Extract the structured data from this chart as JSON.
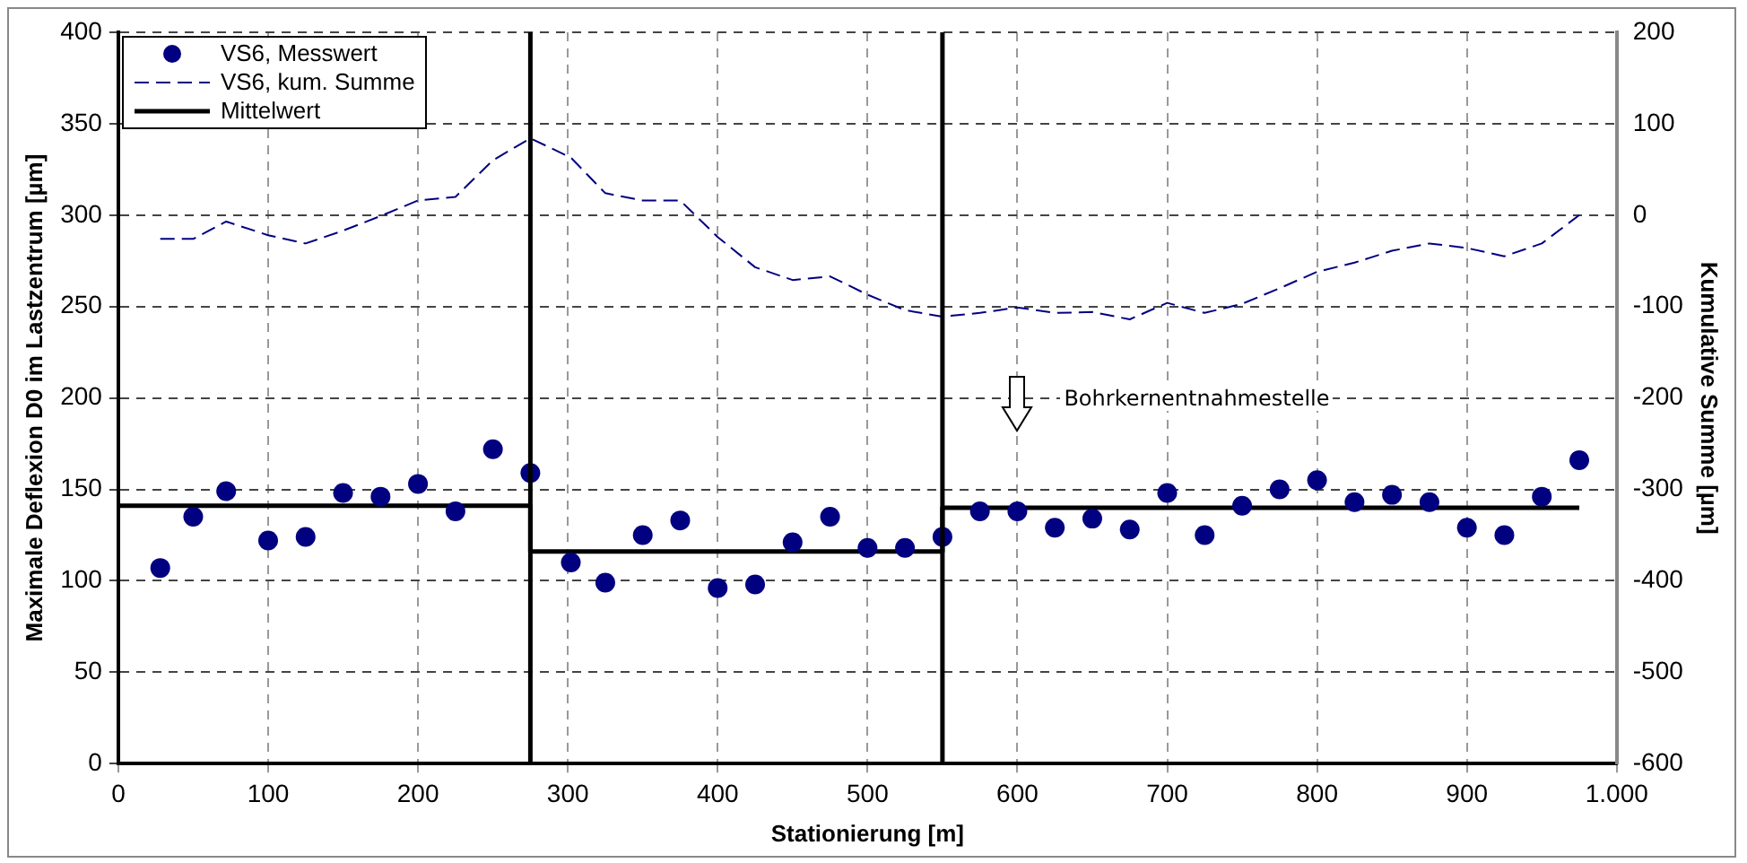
{
  "chart_data": {
    "type": "scatter",
    "xlabel": "Stationierung [m]",
    "ylabel": "Maximale Deflexion D0 im Lastzentrum [µm]",
    "y2label": "Kumulative Summe [µm]",
    "x": [
      28,
      50,
      72,
      100,
      125,
      150,
      175,
      200,
      225,
      250,
      275,
      302,
      325,
      350,
      375,
      400,
      425,
      450,
      475,
      500,
      525,
      550,
      575,
      600,
      625,
      650,
      675,
      700,
      725,
      750,
      775,
      800,
      825,
      850,
      875,
      900,
      925,
      950,
      975
    ],
    "series": [
      {
        "name": "VS6, Messwert",
        "type": "scatter",
        "color": "#000080",
        "marker": "circle",
        "values": [
          107,
          135,
          149,
          122,
          124,
          148,
          146,
          153,
          138,
          172,
          159,
          110,
          99,
          125,
          133,
          96,
          98,
          121,
          135,
          118,
          118,
          124,
          138,
          138,
          129,
          134,
          128,
          148,
          125,
          141,
          150,
          155,
          143,
          147,
          143,
          129,
          125,
          146,
          166
        ]
      },
      {
        "name": "VS6, kum. Summe",
        "type": "line",
        "axis": "y2",
        "color": "#000080",
        "line_style": "dashed",
        "marker": "none",
        "values": [
          -26,
          -26,
          -7,
          -22,
          -31,
          -17,
          -1,
          16,
          20,
          60,
          84,
          63,
          24,
          16,
          16,
          -24,
          -57,
          -71,
          -67,
          -87,
          -104,
          -111,
          -107,
          -101,
          -107,
          -106,
          -114,
          -96,
          -107,
          -97,
          -80,
          -62,
          -52,
          -39,
          -31,
          -36,
          -45,
          -31,
          0
        ]
      },
      {
        "name": "Mittelwert",
        "type": "line",
        "color": "#000000",
        "line_style": "solid",
        "marker": "none",
        "x": [
          0,
          275,
          275,
          550,
          550,
          975
        ],
        "values": [
          141,
          141,
          116,
          116,
          140,
          140
        ]
      }
    ],
    "xlim": [
      0,
      1000
    ],
    "xticks": [
      0,
      100,
      200,
      300,
      400,
      500,
      600,
      700,
      800,
      900,
      {
        "value": 1000,
        "label": "1.000"
      }
    ],
    "ylim": [
      0,
      400
    ],
    "yticks": [
      0,
      50,
      100,
      150,
      200,
      250,
      300,
      350,
      400
    ],
    "y2lim": [
      -600,
      200
    ],
    "y2ticks": [
      -600,
      -500,
      -400,
      -300,
      -200,
      -100,
      0,
      100,
      200
    ],
    "ref_lines": [
      {
        "axis": "x",
        "value": 275,
        "color": "#000000"
      },
      {
        "axis": "x",
        "value": 550,
        "color": "#000000"
      }
    ],
    "annotations": [
      "Bohrkernentnahmestelle"
    ],
    "grid": true,
    "legend": "top left"
  }
}
